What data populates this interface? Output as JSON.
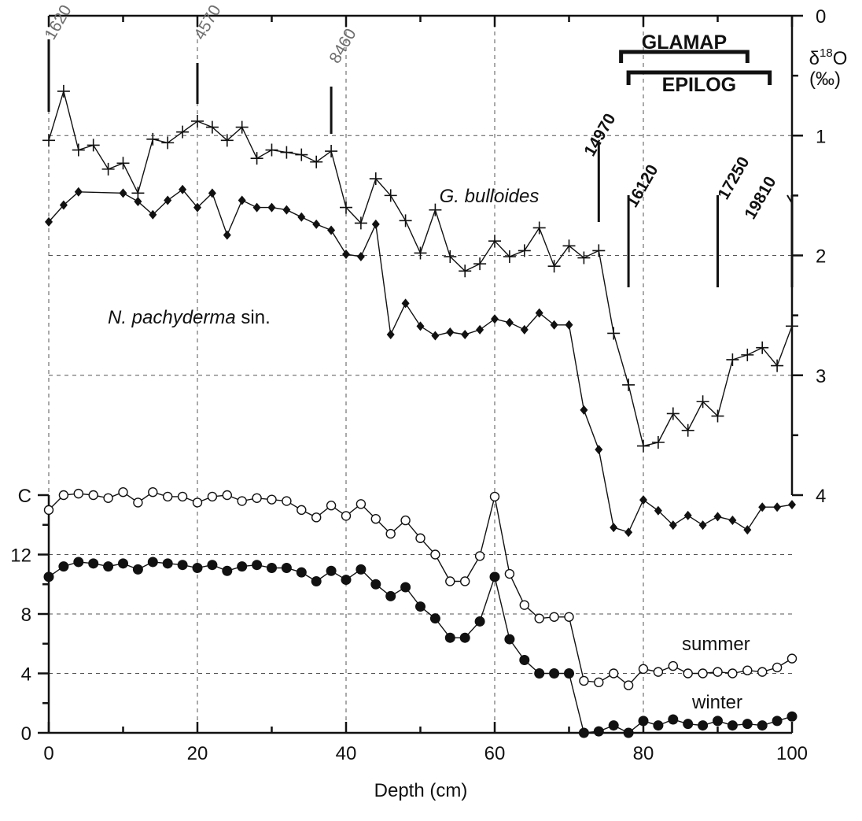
{
  "chart_data": {
    "type": "line",
    "xlabel": "Depth (cm)",
    "x_ticks": [
      0,
      20,
      40,
      60,
      80,
      100
    ],
    "xlim": [
      0,
      100
    ],
    "d18O_axis": {
      "label": "δ18O",
      "label_base": "δ",
      "label_sup": "18",
      "label_tail": "O",
      "unit": "(‰)",
      "ticks": [
        0,
        1,
        2,
        3,
        4
      ],
      "ylim": [
        0,
        4
      ],
      "inverted": true,
      "position": "right"
    },
    "sst_axis": {
      "ticks": [
        "C",
        "12",
        "8",
        "4",
        "0"
      ],
      "tick_values": [
        16,
        12,
        8,
        4,
        0
      ],
      "ylim": [
        0,
        16
      ],
      "position": "left"
    },
    "age_markers": [
      {
        "label": "1620",
        "depth": 0,
        "style": "gray"
      },
      {
        "label": "4570",
        "depth": 20,
        "style": "gray"
      },
      {
        "label": "8460",
        "depth": 38,
        "style": "gray"
      },
      {
        "label": "14970",
        "depth": 74,
        "style": "bold"
      },
      {
        "label": "16120",
        "depth": 78,
        "style": "bold"
      },
      {
        "label": "17250",
        "depth": 90,
        "style": "bold"
      },
      {
        "label": "19810",
        "depth": 100,
        "style": "bold"
      }
    ],
    "ranges": [
      {
        "label": "GLAMAP",
        "start": 77,
        "end": 94
      },
      {
        "label": "EPILOG",
        "start": 78,
        "end": 97
      }
    ],
    "annotations": [
      {
        "text": "G. bulloides",
        "italic": true
      },
      {
        "text_italic": "N. pachyderma",
        "text_plain": " sin."
      },
      {
        "text": "summer"
      },
      {
        "text": "winter"
      }
    ],
    "series": [
      {
        "name": "G. bulloides",
        "axis": "d18O",
        "marker": "plus",
        "x": [
          0,
          2,
          4,
          6,
          8,
          10,
          12,
          14,
          16,
          18,
          20,
          22,
          24,
          26,
          28,
          30,
          32,
          34,
          36,
          38,
          40,
          42,
          44,
          46,
          48,
          50,
          52,
          54,
          56,
          58,
          60,
          62,
          64,
          66,
          68,
          70,
          72,
          74,
          76,
          78,
          80,
          82,
          84,
          86,
          88,
          90,
          92,
          94,
          96,
          98,
          100
        ],
        "y": [
          1.04,
          0.63,
          1.12,
          1.08,
          1.28,
          1.23,
          1.48,
          1.03,
          1.06,
          0.97,
          0.88,
          0.93,
          1.04,
          0.93,
          1.19,
          1.12,
          1.14,
          1.16,
          1.22,
          1.13,
          1.6,
          1.73,
          1.36,
          1.5,
          1.71,
          1.98,
          1.62,
          2.01,
          2.13,
          2.07,
          1.88,
          2.01,
          1.96,
          1.77,
          2.09,
          1.92,
          2.02,
          1.96,
          2.65,
          3.08,
          3.59,
          3.56,
          3.32,
          3.46,
          3.22,
          3.34,
          2.87,
          2.83,
          2.77,
          2.92,
          2.59
        ]
      },
      {
        "name": "N. pachyderma sin.",
        "axis": "d18O",
        "marker": "diamond",
        "x": [
          0,
          2,
          4,
          10,
          12,
          14,
          16,
          18,
          20,
          22,
          24,
          26,
          28,
          30,
          32,
          34,
          36,
          38,
          40,
          42,
          44,
          46,
          48,
          50,
          52,
          54,
          56,
          58,
          60,
          62,
          64,
          66,
          68,
          70,
          72,
          74,
          76,
          78,
          80,
          82,
          84,
          86,
          88,
          90,
          92,
          94,
          96,
          98,
          100
        ],
        "y": [
          1.72,
          1.58,
          1.47,
          1.48,
          1.55,
          1.66,
          1.54,
          1.45,
          1.6,
          1.48,
          1.83,
          1.54,
          1.6,
          1.6,
          1.62,
          1.68,
          1.74,
          1.79,
          1.99,
          2.01,
          1.74,
          2.66,
          2.4,
          2.59,
          2.67,
          2.64,
          2.66,
          2.62,
          2.53,
          2.56,
          2.62,
          2.48,
          2.58,
          2.58,
          3.29,
          3.62,
          4.27,
          4.31,
          4.04,
          4.13,
          4.25,
          4.17,
          4.25,
          4.18,
          4.21,
          4.29,
          4.1,
          4.1,
          4.08
        ]
      },
      {
        "name": "summer",
        "axis": "sst",
        "marker": "open-circle",
        "x": [
          0,
          2,
          4,
          6,
          8,
          10,
          12,
          14,
          16,
          18,
          20,
          22,
          24,
          26,
          28,
          30,
          32,
          34,
          36,
          38,
          40,
          42,
          44,
          46,
          48,
          50,
          52,
          54,
          56,
          58,
          60,
          62,
          64,
          66,
          68,
          70,
          72,
          74,
          76,
          78,
          80,
          82,
          84,
          86,
          88,
          90,
          92,
          94,
          96,
          98,
          100
        ],
        "y": [
          15.0,
          16.0,
          16.1,
          16.0,
          15.8,
          16.2,
          15.5,
          16.2,
          15.9,
          15.9,
          15.5,
          15.9,
          16.0,
          15.6,
          15.8,
          15.7,
          15.6,
          15.0,
          14.5,
          15.3,
          14.6,
          15.4,
          14.4,
          13.4,
          14.3,
          13.1,
          12.0,
          10.2,
          10.2,
          11.9,
          15.9,
          10.7,
          8.6,
          7.7,
          7.8,
          7.8,
          3.5,
          3.4,
          4.0,
          3.2,
          4.3,
          4.1,
          4.5,
          4.0,
          4.0,
          4.1,
          4.0,
          4.2,
          4.1,
          4.4,
          5.0
        ]
      },
      {
        "name": "winter",
        "axis": "sst",
        "marker": "filled-circle",
        "x": [
          0,
          2,
          4,
          6,
          8,
          10,
          12,
          14,
          16,
          18,
          20,
          22,
          24,
          26,
          28,
          30,
          32,
          34,
          36,
          38,
          40,
          42,
          44,
          46,
          48,
          50,
          52,
          54,
          56,
          58,
          60,
          62,
          64,
          66,
          68,
          70,
          72,
          74,
          76,
          78,
          80,
          82,
          84,
          86,
          88,
          90,
          92,
          94,
          96,
          98,
          100
        ],
        "y": [
          10.5,
          11.2,
          11.5,
          11.4,
          11.2,
          11.4,
          11.0,
          11.5,
          11.4,
          11.3,
          11.1,
          11.3,
          10.9,
          11.2,
          11.3,
          11.1,
          11.1,
          10.8,
          10.2,
          10.9,
          10.3,
          11.0,
          10.0,
          9.2,
          9.8,
          8.5,
          7.7,
          6.4,
          6.4,
          7.5,
          10.5,
          6.3,
          4.9,
          4.0,
          4.0,
          4.0,
          0.0,
          0.1,
          0.5,
          0.0,
          0.8,
          0.5,
          0.9,
          0.6,
          0.5,
          0.8,
          0.5,
          0.6,
          0.5,
          0.8,
          1.1
        ]
      }
    ]
  }
}
